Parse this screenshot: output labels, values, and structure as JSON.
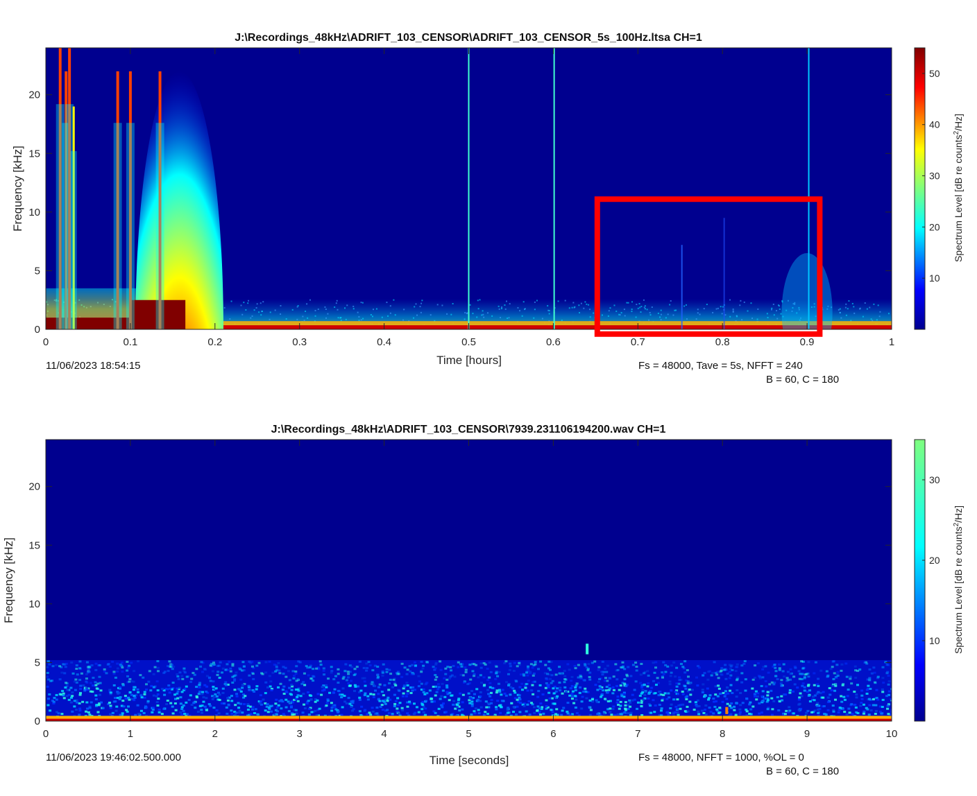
{
  "chart_data": [
    {
      "type": "heatmap",
      "title": "J:\\Recordings_48kHz\\ADRIFT_103_CENSOR\\ADRIFT_103_CENSOR_5s_100Hz.ltsa CH=1",
      "xlabel": "Time [hours]",
      "ylabel": "Frequency [kHz]",
      "xlim": [
        0,
        1
      ],
      "ylim": [
        0,
        24
      ],
      "xticks": [
        "0",
        "0.1",
        "0.2",
        "0.3",
        "0.4",
        "0.5",
        "0.6",
        "0.7",
        "0.8",
        "0.9",
        "1"
      ],
      "yticks": [
        "0",
        "5",
        "10",
        "15",
        "20"
      ],
      "colorbar": {
        "label": "Spectrum Level [dB re counts",
        "label_sup": "2",
        "label_suffix": "/Hz]",
        "ticks": [
          "10",
          "20",
          "30",
          "40",
          "50"
        ],
        "cmax": 55
      },
      "start_time": "11/06/2023 18:54:15",
      "params_line1": "Fs = 48000, Tave = 5s, NFFT = 240",
      "params_line2": "B = 60, C = 180",
      "highlight_box": {
        "x": [
          0.652,
          0.915
        ],
        "y": [
          -0.4,
          11.1
        ],
        "color": "#ff0000"
      },
      "events": [
        {
          "x": 0.017,
          "top": 24,
          "level": "hot"
        },
        {
          "x": 0.024,
          "top": 22,
          "level": "hot"
        },
        {
          "x": 0.028,
          "top": 24,
          "level": "hot"
        },
        {
          "x": 0.033,
          "top": 19,
          "level": "warm"
        },
        {
          "x": 0.085,
          "top": 22,
          "level": "hot"
        },
        {
          "x": 0.1,
          "top": 22,
          "level": "hot"
        },
        {
          "x": 0.135,
          "top": 22,
          "level": "hot"
        },
        {
          "x": 0.5,
          "top": 24,
          "level": "line"
        },
        {
          "x": 0.601,
          "top": 24,
          "level": "line"
        },
        {
          "x": 0.902,
          "top": 24,
          "level": "faint"
        }
      ]
    },
    {
      "type": "heatmap",
      "title": "J:\\Recordings_48kHz\\ADRIFT_103_CENSOR\\7939.231106194200.wav CH=1",
      "xlabel": "Time [seconds]",
      "ylabel": "Frequency [kHz]",
      "xlim": [
        0,
        10
      ],
      "ylim": [
        0,
        24
      ],
      "xticks": [
        "0",
        "1",
        "2",
        "3",
        "4",
        "5",
        "6",
        "7",
        "8",
        "9",
        "10"
      ],
      "yticks": [
        "0",
        "5",
        "10",
        "15",
        "20"
      ],
      "colorbar": {
        "label": "Spectrum Level [dB re counts",
        "label_sup": "2",
        "label_suffix": "/Hz]",
        "ticks": [
          "10",
          "20",
          "30"
        ],
        "cmax": 35
      },
      "start_time": "11/06/2023 19:46:02.500.000",
      "params_line1": "Fs = 48000, NFFT = 1000, %OL = 0",
      "params_line2": "B = 60, C = 180",
      "events": [
        {
          "x": 6.4,
          "f0": 5.7,
          "f1": 6.6
        },
        {
          "x": 8.05,
          "f0": 0.6,
          "f1": 1.2
        }
      ]
    }
  ]
}
